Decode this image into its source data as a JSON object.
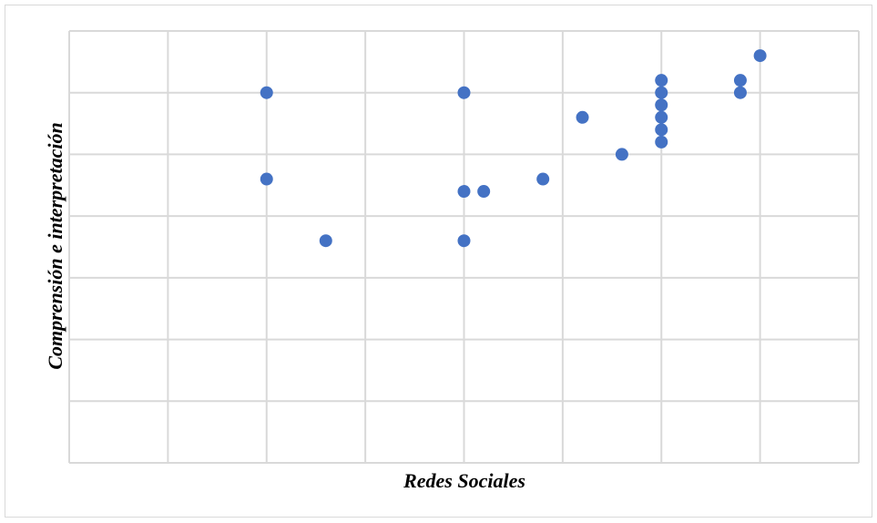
{
  "chart_data": {
    "type": "scatter",
    "title": "",
    "xlabel": "Redes Sociales",
    "ylabel": "Comprensión e interpretación",
    "xlim": [
      0,
      8
    ],
    "ylim": [
      0,
      7
    ],
    "grid": true,
    "legend": "none",
    "marker_color": "#4472c4",
    "grid_color": "#d9d9d9",
    "points": [
      {
        "x": 2,
        "y": 6
      },
      {
        "x": 2,
        "y": 4.6
      },
      {
        "x": 2.6,
        "y": 3.6
      },
      {
        "x": 4,
        "y": 6
      },
      {
        "x": 4,
        "y": 4.4
      },
      {
        "x": 4.2,
        "y": 4.4
      },
      {
        "x": 4,
        "y": 3.6
      },
      {
        "x": 4.8,
        "y": 4.6
      },
      {
        "x": 5.2,
        "y": 5.6
      },
      {
        "x": 5.6,
        "y": 5
      },
      {
        "x": 6,
        "y": 6.2
      },
      {
        "x": 6,
        "y": 6
      },
      {
        "x": 6,
        "y": 5.8
      },
      {
        "x": 6,
        "y": 5.6
      },
      {
        "x": 6,
        "y": 5.4
      },
      {
        "x": 6,
        "y": 5.2
      },
      {
        "x": 6.8,
        "y": 6.2
      },
      {
        "x": 6.8,
        "y": 6
      },
      {
        "x": 7,
        "y": 6.6
      }
    ]
  }
}
